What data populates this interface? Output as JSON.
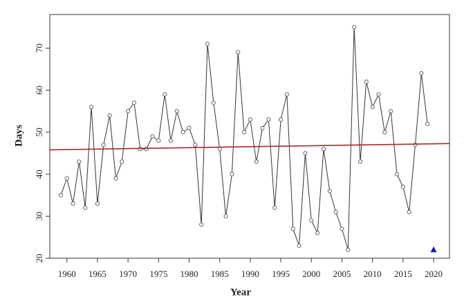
{
  "chart_data": {
    "type": "line",
    "x_label": "Year",
    "y_label": "Days",
    "xlim": [
      1957.2,
      2022.6
    ],
    "ylim": [
      20,
      78
    ],
    "xticks": [
      1960,
      1965,
      1970,
      1975,
      1980,
      1985,
      1990,
      1995,
      2000,
      2005,
      2010,
      2015,
      2020
    ],
    "yticks": [
      20,
      30,
      40,
      50,
      60,
      70
    ],
    "series": [
      {
        "color": "#333333",
        "x": [
          1959,
          1960,
          1961,
          1962,
          1963,
          1964,
          1965,
          1966,
          1967,
          1968,
          1969,
          1970,
          1971,
          1972,
          1973,
          1974,
          1975,
          1976,
          1977,
          1978,
          1979,
          1980,
          1981,
          1982,
          1983,
          1984,
          1985,
          1986,
          1987,
          1988,
          1989,
          1990,
          1991,
          1992,
          1993,
          1994,
          1995,
          1996,
          1997,
          1998,
          1999,
          2000,
          2001,
          2002,
          2003,
          2004,
          2005,
          2006,
          2007,
          2008,
          2009,
          2010,
          2011,
          2012,
          2013,
          2014,
          2015,
          2016,
          2017,
          2018,
          2019
        ],
        "values": [
          35,
          39,
          33,
          43,
          32,
          56,
          33,
          47,
          54,
          39,
          43,
          55,
          57,
          46,
          46,
          49,
          48,
          59,
          48,
          55,
          50,
          51,
          47,
          28,
          71,
          57,
          46,
          30,
          40,
          69,
          50,
          53,
          43,
          51,
          53,
          32,
          53,
          59,
          27,
          23,
          45,
          29,
          26,
          46,
          36,
          31,
          27,
          22,
          75,
          43,
          62,
          56,
          59,
          50,
          55,
          40,
          37,
          31,
          47,
          64,
          52
        ]
      }
    ],
    "trend": {
      "color": "#a52a2a",
      "x": [
        1957.2,
        2022.6
      ],
      "values": [
        45.8,
        47.3
      ]
    },
    "highlight": {
      "color": "#1a1aa6",
      "x": [
        2020
      ],
      "values": [
        22
      ]
    }
  }
}
